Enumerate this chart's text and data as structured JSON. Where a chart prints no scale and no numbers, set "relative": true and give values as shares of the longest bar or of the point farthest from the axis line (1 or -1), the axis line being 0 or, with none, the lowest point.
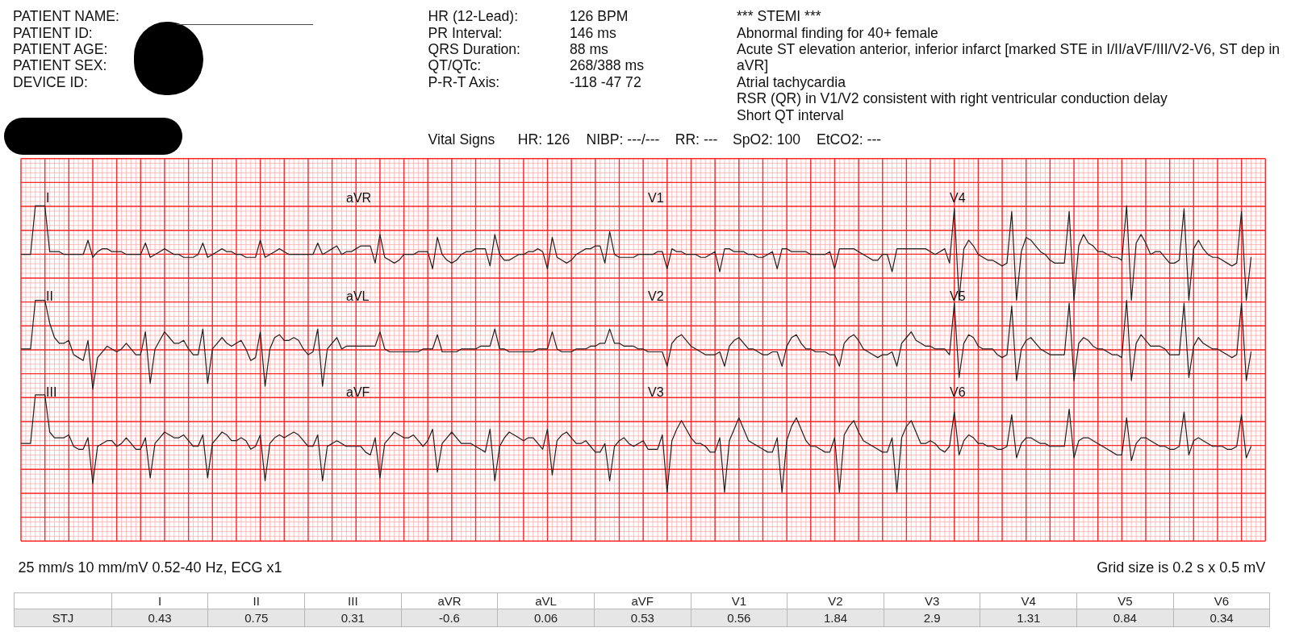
{
  "chart_data": [
    {
      "type": "line",
      "relative": true,
      "tick_labels": false,
      "grid": true,
      "categories": [
        null,
        null,
        null,
        null,
        null,
        null,
        null,
        null,
        null,
        null,
        null,
        null,
        null,
        null,
        null,
        null,
        null,
        null,
        null,
        null,
        null,
        null,
        null,
        null,
        null,
        null,
        null,
        null,
        null,
        null,
        null,
        null,
        null,
        null,
        null,
        null,
        null,
        null,
        null,
        null,
        null,
        null,
        null,
        null,
        null,
        null,
        null,
        null,
        null,
        null,
        null,
        null,
        null,
        null,
        null,
        null,
        null,
        null,
        null,
        null,
        null,
        null,
        null,
        null,
        null,
        null,
        null,
        null,
        null,
        null,
        null,
        null,
        null,
        null,
        null,
        null,
        null,
        null,
        null,
        null,
        null,
        null,
        null,
        null,
        null,
        null,
        null,
        null,
        null,
        null,
        null,
        null,
        null,
        null,
        null,
        null,
        null,
        null,
        null,
        null,
        null,
        null,
        null,
        null,
        null,
        null,
        null,
        null,
        null,
        null,
        null,
        null,
        null,
        null,
        null,
        null,
        null,
        null,
        null,
        null,
        null,
        null,
        null,
        null,
        null,
        null,
        null,
        null,
        null,
        null,
        null,
        null,
        null,
        null,
        null,
        null,
        null,
        null,
        null,
        null,
        null,
        null,
        null,
        null,
        null,
        null,
        null,
        null,
        null,
        null,
        null,
        null,
        null,
        null,
        null,
        null,
        null,
        null,
        null,
        null,
        null,
        null,
        null,
        null,
        null,
        null,
        null,
        null,
        null,
        null,
        null,
        null,
        null,
        null,
        null,
        null,
        null,
        null,
        null,
        null,
        null,
        null,
        null,
        null,
        null,
        null,
        null,
        null,
        null,
        null,
        null,
        null,
        null,
        null,
        null,
        null,
        null,
        null,
        null,
        null,
        null,
        null,
        null,
        null,
        null,
        null,
        null,
        null,
        null,
        null,
        null,
        null,
        null,
        null,
        null,
        null,
        null,
        null,
        null,
        null,
        null,
        null,
        null,
        null,
        null,
        null,
        null,
        null,
        null,
        null,
        null,
        null,
        null,
        null,
        null,
        null,
        null,
        null,
        null,
        null,
        null,
        null,
        null,
        null,
        null,
        null,
        null,
        null,
        null,
        null,
        null,
        null,
        null,
        null,
        null,
        null,
        null,
        null,
        null,
        null,
        null
      ],
      "annotations": [
        "PATIENT NAME:",
        "PATIENT ID:",
        "PATIENT AGE:",
        "PATIENT SEX:",
        "DEVICE ID:",
        "HR (12-Lead):",
        "PR Interval:",
        "QRS Duration:",
        "QT/QTc:",
        "P-R-T Axis:",
        "126 BPM",
        "146 ms",
        "88 ms",
        "268/388 ms",
        "-118 -47 72",
        "*** STEMI ***",
        "Abnormal finding for 40+ female",
        "Acute ST elevation anterior, inferior infarct [marked STE in I/II/aVF/III/V2-V6, ST dep in aVR]",
        "Atrial tachycardia",
        "RSR (QR) in V1/V2 consistent with right ventricular conduction delay",
        "Short QT interval",
        "Vital Signs",
        "HR: 126",
        "NIBP: ---/---",
        "RR: ---",
        "SpO2: 100",
        "EtCO2: ---",
        "25 mm/s 10 mm/mV 0.52-40 Hz, ECG x1",
        "Grid size is 0.2 s x 0.5 mV",
        "I",
        "aVR",
        "V1",
        "V4",
        "II",
        "aVL",
        "V2",
        "V5",
        "III",
        "aVF",
        "V3",
        "V6"
      ],
      "series": [
        {
          "color": "#1f1f1f",
          "values": [
            0.83,
            0.83,
            0.83,
            1,
            1,
            1,
            0.84,
            0.84,
            0.84,
            0.83,
            0.83,
            0.83,
            0.83,
            0.83,
            0.88,
            0.82,
            0.84,
            0.85,
            0.85,
            0.84,
            0.84,
            0.84,
            0.83,
            0.83,
            0.83,
            0.83,
            0.87,
            0.82,
            0.83,
            0.84,
            0.85,
            0.84,
            0.83,
            0.83,
            0.82,
            0.82,
            0.82,
            0.83,
            0.87,
            0.82,
            0.83,
            0.84,
            0.85,
            0.84,
            0.84,
            0.83,
            0.83,
            0.82,
            0.82,
            0.82,
            0.88,
            0.82,
            0.83,
            0.84,
            0.85,
            0.84,
            0.83,
            0.83,
            0.83,
            0.83,
            0.83,
            0.83,
            0.87,
            0.83,
            0.84,
            0.85,
            0.86,
            0.83,
            0.84,
            0.84,
            0.85,
            0.86,
            0.86,
            0.86,
            0.8,
            0.9,
            0.82,
            0.81,
            0.8,
            0.81,
            0.83,
            0.83,
            0.83,
            0.84,
            0.84,
            0.84,
            0.78,
            0.89,
            0.83,
            0.81,
            0.8,
            0.81,
            0.83,
            0.84,
            0.84,
            0.85,
            0.85,
            0.85,
            0.79,
            0.9,
            0.83,
            0.81,
            0.81,
            0.82,
            0.83,
            0.83,
            0.84,
            0.84,
            0.85,
            0.84,
            0.78,
            0.89,
            0.82,
            0.81,
            0.8,
            0.81,
            0.83,
            0.84,
            0.85,
            0.85,
            0.86,
            0.86,
            0.8,
            0.91,
            0.83,
            0.82,
            0.82,
            0.82,
            0.82,
            0.83,
            0.83,
            0.83,
            0.83,
            0.84,
            0.84,
            0.78,
            0.85,
            0.84,
            0.84,
            0.83,
            0.83,
            0.83,
            0.82,
            0.82,
            0.83,
            0.84,
            0.77,
            0.85,
            0.85,
            0.84,
            0.84,
            0.84,
            0.83,
            0.83,
            0.82,
            0.82,
            0.83,
            0.84,
            0.78,
            0.85,
            0.85,
            0.84,
            0.84,
            0.84,
            0.84,
            0.83,
            0.83,
            0.83,
            0.83,
            0.84,
            0.78,
            0.85,
            0.85,
            0.85,
            0.85,
            0.84,
            0.83,
            0.82,
            0.81,
            0.81,
            0.83,
            0.83,
            0.77,
            0.85,
            0.85,
            0.85,
            0.85,
            0.85,
            0.85,
            0.85,
            0.84,
            0.83,
            0.84,
            0.85,
            0.8,
            0.99,
            0.67,
            0.85,
            0.88,
            0.86,
            0.83,
            0.82,
            0.81,
            0.81,
            0.8,
            0.79,
            0.8,
            0.98,
            0.67,
            0.84,
            0.89,
            0.88,
            0.86,
            0.84,
            0.83,
            0.81,
            0.8,
            0.8,
            0.8,
            0.98,
            0.67,
            0.86,
            0.9,
            0.87,
            0.86,
            0.84,
            0.84,
            0.83,
            0.82,
            0.82,
            0.81,
            1,
            0.67,
            0.87,
            0.9,
            0.87,
            0.83,
            0.84,
            0.84,
            0.82,
            0.8,
            0.8,
            0.81,
            0.99,
            0.67,
            0.85,
            0.88,
            0.85,
            0.83,
            0.82,
            0.82,
            0.81,
            0.8,
            0.79,
            0.8,
            0.98,
            0.67,
            0.82,
            null,
            null,
            null
          ]
        },
        {
          "color": "#1f1f1f",
          "values": [
            0.5,
            0.5,
            0.5,
            0.67,
            0.67,
            0.67,
            0.59,
            0.54,
            0.52,
            0.52,
            0.53,
            0.48,
            0.47,
            0.46,
            0.53,
            0.36,
            0.47,
            0.49,
            0.51,
            0.5,
            0.49,
            0.5,
            0.52,
            0.5,
            0.48,
            0.48,
            0.56,
            0.38,
            0.5,
            0.53,
            0.56,
            0.54,
            0.52,
            0.52,
            0.53,
            0.5,
            0.48,
            0.48,
            0.57,
            0.38,
            0.5,
            0.52,
            0.54,
            0.52,
            0.51,
            0.52,
            0.53,
            0.5,
            0.46,
            0.47,
            0.56,
            0.37,
            0.5,
            0.54,
            0.55,
            0.53,
            0.53,
            0.54,
            0.53,
            0.5,
            0.48,
            0.49,
            0.57,
            0.37,
            0.5,
            0.52,
            0.54,
            0.5,
            0.51,
            0.51,
            0.51,
            0.51,
            0.51,
            0.51,
            0.51,
            0.56,
            0.5,
            0.49,
            0.49,
            0.49,
            0.49,
            0.49,
            0.49,
            0.49,
            0.5,
            0.5,
            0.5,
            0.55,
            0.49,
            0.49,
            0.49,
            0.49,
            0.5,
            0.5,
            0.5,
            0.5,
            0.51,
            0.51,
            0.51,
            0.57,
            0.5,
            0.5,
            0.49,
            0.49,
            0.49,
            0.49,
            0.49,
            0.49,
            0.5,
            0.5,
            0.5,
            0.56,
            0.5,
            0.49,
            0.49,
            0.49,
            0.5,
            0.5,
            0.5,
            0.51,
            0.51,
            0.52,
            0.52,
            0.57,
            0.52,
            0.52,
            0.51,
            0.51,
            0.51,
            0.5,
            0.5,
            0.49,
            0.49,
            0.49,
            0.49,
            0.44,
            0.52,
            0.54,
            0.55,
            0.53,
            0.51,
            0.5,
            0.49,
            0.48,
            0.48,
            0.48,
            0.49,
            0.44,
            0.51,
            0.53,
            0.54,
            0.52,
            0.5,
            0.5,
            0.49,
            0.48,
            0.48,
            0.49,
            0.49,
            0.44,
            0.51,
            0.54,
            0.55,
            0.52,
            0.5,
            0.5,
            0.49,
            0.49,
            0.49,
            0.48,
            0.48,
            0.44,
            0.52,
            0.54,
            0.55,
            0.53,
            0.5,
            0.49,
            0.48,
            0.47,
            0.48,
            0.48,
            0.49,
            0.44,
            0.52,
            0.54,
            0.56,
            0.53,
            0.52,
            0.51,
            0.51,
            0.5,
            0.5,
            0.5,
            0.48,
            0.66,
            0.4,
            0.52,
            0.55,
            0.54,
            0.51,
            0.5,
            0.5,
            0.5,
            0.48,
            0.47,
            0.48,
            0.65,
            0.39,
            0.5,
            0.53,
            0.54,
            0.52,
            0.5,
            0.49,
            0.48,
            0.48,
            0.48,
            0.48,
            0.66,
            0.39,
            0.52,
            0.54,
            0.53,
            0.51,
            0.5,
            0.5,
            0.49,
            0.48,
            0.48,
            0.47,
            0.67,
            0.39,
            0.52,
            0.55,
            0.53,
            0.51,
            0.51,
            0.51,
            0.5,
            0.48,
            0.48,
            0.48,
            0.66,
            0.4,
            0.51,
            0.54,
            0.52,
            0.51,
            0.5,
            0.5,
            0.49,
            0.48,
            0.47,
            0.48,
            0.66,
            0.39,
            0.49,
            null,
            null,
            null
          ]
        },
        {
          "color": "#1f1f1f",
          "values": [
            0.17,
            0.17,
            0.17,
            0.34,
            0.34,
            0.34,
            0.21,
            0.19,
            0.19,
            0.19,
            0.2,
            0.16,
            0.15,
            0.15,
            0.19,
            0.03,
            0.16,
            0.17,
            0.18,
            0.18,
            0.16,
            0.17,
            0.19,
            0.17,
            0.15,
            0.15,
            0.19,
            0.05,
            0.17,
            0.19,
            0.21,
            0.2,
            0.19,
            0.19,
            0.2,
            0.18,
            0.16,
            0.16,
            0.2,
            0.05,
            0.17,
            0.19,
            0.21,
            0.2,
            0.18,
            0.18,
            0.19,
            0.18,
            0.15,
            0.16,
            0.2,
            0.04,
            0.17,
            0.19,
            0.2,
            0.19,
            0.2,
            0.21,
            0.2,
            0.18,
            0.16,
            0.16,
            0.2,
            0.04,
            0.16,
            0.17,
            0.18,
            0.17,
            0.16,
            0.16,
            0.16,
            0.16,
            0.14,
            0.13,
            0.19,
            0.05,
            0.17,
            0.19,
            0.21,
            0.2,
            0.19,
            0.19,
            0.2,
            0.18,
            0.16,
            0.18,
            0.22,
            0.07,
            0.17,
            0.19,
            0.21,
            0.19,
            0.17,
            0.17,
            0.17,
            0.16,
            0.15,
            0.14,
            0.22,
            0.04,
            0.16,
            0.19,
            0.21,
            0.2,
            0.19,
            0.18,
            0.19,
            0.19,
            0.17,
            0.15,
            0.22,
            0.06,
            0.18,
            0.2,
            0.21,
            0.19,
            0.17,
            0.17,
            0.18,
            0.16,
            0.14,
            0.14,
            0.17,
            0.04,
            0.16,
            0.18,
            0.19,
            0.17,
            0.16,
            0.17,
            0.18,
            0.15,
            0.15,
            0.15,
            0.2,
            0,
            0.18,
            0.22,
            0.25,
            0.22,
            0.19,
            0.17,
            0.17,
            0.16,
            0.14,
            0.14,
            0.19,
            0,
            0.18,
            0.22,
            0.26,
            0.22,
            0.18,
            0.17,
            0.16,
            0.15,
            0.14,
            0.14,
            0.19,
            0,
            0.18,
            0.23,
            0.26,
            0.22,
            0.18,
            0.16,
            0.16,
            0.15,
            0.14,
            0.14,
            0.19,
            0,
            0.2,
            0.23,
            0.25,
            0.21,
            0.18,
            0.17,
            0.16,
            0.15,
            0.14,
            0.14,
            0.19,
            0,
            0.19,
            0.23,
            0.25,
            0.21,
            0.17,
            0.17,
            0.18,
            0.17,
            0.15,
            0.14,
            0.16,
            0.28,
            0.13,
            0.18,
            0.2,
            0.19,
            0.17,
            0.17,
            0.16,
            0.16,
            0.15,
            0.15,
            0.16,
            0.27,
            0.12,
            0.17,
            0.19,
            0.19,
            0.18,
            0.17,
            0.17,
            0.16,
            0.16,
            0.16,
            0.16,
            0.29,
            0.12,
            0.18,
            0.19,
            0.19,
            0.18,
            0.17,
            0.16,
            0.15,
            0.14,
            0.13,
            0.13,
            0.26,
            0.11,
            0.17,
            0.19,
            0.19,
            0.18,
            0.17,
            0.16,
            0.16,
            0.15,
            0.15,
            0.16,
            0.28,
            0.13,
            0.18,
            0.19,
            0.18,
            0.17,
            0.16,
            0.16,
            0.16,
            0.15,
            0.15,
            0.16,
            0.27,
            0.12,
            0.16,
            null,
            null,
            null
          ]
        }
      ]
    },
    {
      "type": "other",
      "categories": [
        "I",
        "II",
        "III",
        "aVR",
        "aVL",
        "aVF",
        "V1",
        "V2",
        "V3",
        "V4",
        "V5",
        "V6"
      ],
      "series": [
        {
          "name": "STJ",
          "values": [
            0.43,
            0.75,
            0.31,
            -0.6,
            0.06,
            0.53,
            0.56,
            1.84,
            2.9,
            1.31,
            0.84,
            0.34
          ]
        }
      ],
      "data_labels": true
    }
  ]
}
